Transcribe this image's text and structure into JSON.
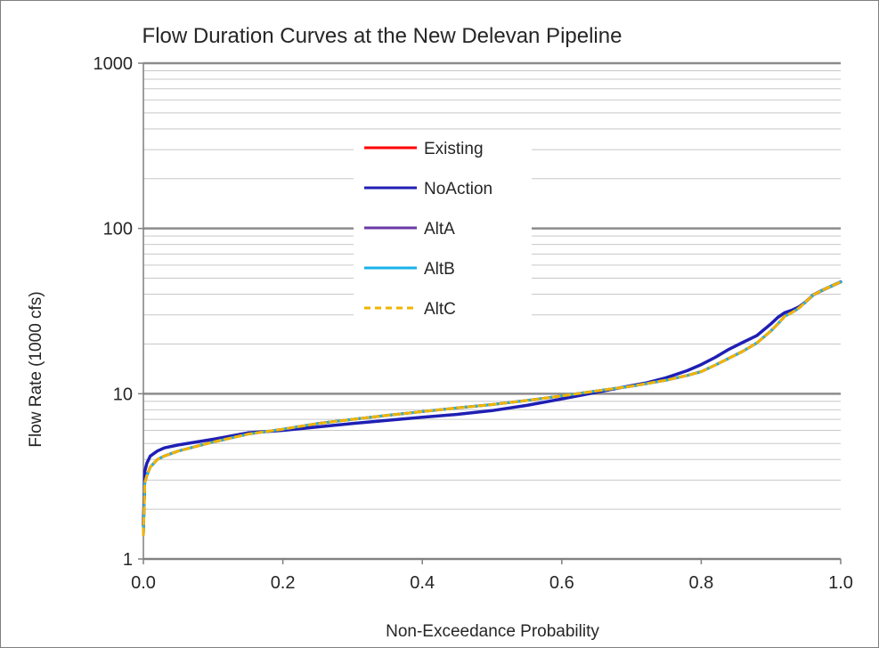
{
  "chart_data": {
    "type": "line",
    "title": "Flow Duration Curves at the New Delevan Pipeline",
    "xlabel": "Non-Exceedance Probability",
    "ylabel": "Flow Rate (1000 cfs)",
    "x_range": [
      0.0,
      1.0
    ],
    "y_range": [
      1,
      1000
    ],
    "y_scale": "log",
    "x_ticks": [
      "0.0",
      "0.2",
      "0.4",
      "0.6",
      "0.8",
      "1.0"
    ],
    "y_ticks": [
      "1",
      "10",
      "100",
      "1000"
    ],
    "grid": "horizontal major and minor (log)",
    "legend_position": "upper-center",
    "x": [
      0.0,
      0.002,
      0.005,
      0.01,
      0.02,
      0.03,
      0.05,
      0.1,
      0.15,
      0.2,
      0.25,
      0.3,
      0.35,
      0.4,
      0.45,
      0.5,
      0.55,
      0.6,
      0.65,
      0.7,
      0.72,
      0.75,
      0.78,
      0.8,
      0.82,
      0.84,
      0.86,
      0.88,
      0.9,
      0.91,
      0.92,
      0.93,
      0.94,
      0.95,
      0.96,
      0.97,
      0.98,
      0.99,
      1.0
    ],
    "series": [
      {
        "name": "Existing",
        "color": "#ff0000",
        "dashed": false,
        "values": [
          1.4,
          2.9,
          3.2,
          3.6,
          4.0,
          4.2,
          4.5,
          5.1,
          5.7,
          6.1,
          6.6,
          7.0,
          7.4,
          7.8,
          8.2,
          8.6,
          9.1,
          9.7,
          10.4,
          11.1,
          11.5,
          12.1,
          12.9,
          13.6,
          14.9,
          16.4,
          18.1,
          20.3,
          24.0,
          26.5,
          29.5,
          31.0,
          33.0,
          36.0,
          39.5,
          41.5,
          43.5,
          45.5,
          47.5
        ]
      },
      {
        "name": "NoAction",
        "color": "#1f1fb4",
        "dashed": false,
        "values": [
          1.6,
          3.4,
          3.8,
          4.2,
          4.5,
          4.7,
          4.9,
          5.3,
          5.8,
          6.0,
          6.3,
          6.6,
          6.9,
          7.2,
          7.5,
          7.9,
          8.5,
          9.3,
          10.2,
          11.2,
          11.6,
          12.5,
          13.8,
          15.0,
          16.6,
          18.6,
          20.5,
          22.5,
          26.5,
          29.0,
          31.0,
          32.0,
          33.5,
          36.0,
          39.5,
          41.5,
          43.5,
          45.5,
          47.5
        ]
      },
      {
        "name": "AltA",
        "color": "#6a3aa6",
        "dashed": false,
        "values": [
          1.4,
          2.9,
          3.2,
          3.6,
          4.0,
          4.2,
          4.5,
          5.1,
          5.7,
          6.1,
          6.6,
          7.0,
          7.4,
          7.8,
          8.2,
          8.6,
          9.1,
          9.7,
          10.4,
          11.1,
          11.5,
          12.1,
          12.9,
          13.6,
          14.9,
          16.4,
          18.1,
          20.3,
          24.0,
          26.5,
          29.5,
          31.0,
          33.0,
          36.0,
          39.5,
          41.5,
          43.5,
          45.5,
          47.5
        ]
      },
      {
        "name": "AltB",
        "color": "#1ab2e8",
        "dashed": false,
        "values": [
          1.4,
          2.9,
          3.2,
          3.6,
          4.0,
          4.2,
          4.5,
          5.1,
          5.7,
          6.1,
          6.6,
          7.0,
          7.4,
          7.8,
          8.2,
          8.6,
          9.1,
          9.7,
          10.4,
          11.1,
          11.5,
          12.1,
          12.9,
          13.6,
          14.9,
          16.4,
          18.1,
          20.3,
          24.0,
          26.5,
          29.5,
          31.0,
          33.0,
          36.0,
          39.5,
          41.5,
          43.5,
          45.5,
          47.5
        ]
      },
      {
        "name": "AltC",
        "color": "#f0b400",
        "dashed": true,
        "values": [
          1.4,
          2.9,
          3.2,
          3.6,
          4.0,
          4.2,
          4.5,
          5.1,
          5.7,
          6.1,
          6.6,
          7.0,
          7.4,
          7.8,
          8.2,
          8.6,
          9.1,
          9.7,
          10.4,
          11.1,
          11.5,
          12.1,
          12.9,
          13.6,
          14.9,
          16.4,
          18.1,
          20.3,
          24.0,
          26.5,
          29.5,
          31.0,
          33.0,
          36.0,
          39.5,
          41.5,
          43.5,
          45.5,
          47.5
        ]
      }
    ]
  }
}
